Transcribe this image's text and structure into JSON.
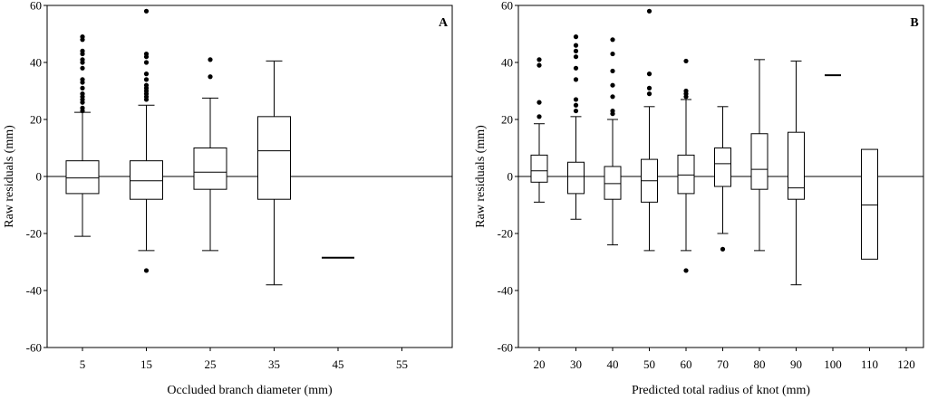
{
  "chart_data": [
    {
      "type": "boxplot",
      "panel_label": "A",
      "xlabel": "Occluded branch diameter (mm)",
      "ylabel": "Raw residuals (mm)",
      "ylim": [
        -60,
        60
      ],
      "yticks": [
        "-60",
        "-40",
        "-20",
        "0",
        "20",
        "40",
        "60"
      ],
      "reference_line": 0,
      "categories": [
        "5",
        "15",
        "25",
        "35",
        "45",
        "55"
      ],
      "boxes": [
        {
          "category": "5",
          "whisker_low": -21,
          "q1": -6,
          "median": -0.5,
          "q3": 5.5,
          "whisker_high": 22.5,
          "outliers": [
            23,
            24,
            26,
            27,
            28,
            29,
            31,
            33,
            34,
            38,
            40,
            41,
            43,
            44,
            48,
            49
          ]
        },
        {
          "category": "15",
          "whisker_low": -26,
          "q1": -8,
          "median": -1.5,
          "q3": 5.5,
          "whisker_high": 25,
          "outliers": [
            -33,
            27,
            28,
            29,
            30,
            31,
            32,
            34,
            36,
            40,
            42,
            43,
            58
          ]
        },
        {
          "category": "25",
          "whisker_low": -26,
          "q1": -4.5,
          "median": 1.5,
          "q3": 10,
          "whisker_high": 27.5,
          "outliers": [
            35,
            41
          ]
        },
        {
          "category": "35",
          "whisker_low": -38,
          "q1": -8,
          "median": 9,
          "q3": 21,
          "whisker_high": 40.5,
          "outliers": []
        },
        {
          "category": "45",
          "whisker_low": -28.5,
          "q1": -28.5,
          "median": -28.5,
          "q3": -28.5,
          "whisker_high": -28.5,
          "outliers": []
        },
        {
          "category": "55",
          "empty": true
        }
      ]
    },
    {
      "type": "boxplot",
      "panel_label": "B",
      "xlabel": "Predicted total radius of knot (mm)",
      "ylabel": "Raw residuals (mm)",
      "ylim": [
        -60,
        60
      ],
      "yticks": [
        "-60",
        "-40",
        "-20",
        "0",
        "20",
        "40",
        "60"
      ],
      "reference_line": 0,
      "categories": [
        "20",
        "30",
        "40",
        "50",
        "60",
        "70",
        "80",
        "90",
        "100",
        "110",
        "120"
      ],
      "boxes": [
        {
          "category": "20",
          "whisker_low": -9,
          "q1": -2,
          "median": 2,
          "q3": 7.5,
          "whisker_high": 18.5,
          "outliers": [
            21,
            26,
            39,
            41
          ]
        },
        {
          "category": "30",
          "whisker_low": -15,
          "q1": -6,
          "median": 0,
          "q3": 5,
          "whisker_high": 21,
          "outliers": [
            23,
            25,
            27,
            34,
            38,
            42,
            44,
            46,
            49
          ]
        },
        {
          "category": "40",
          "whisker_low": -24,
          "q1": -8,
          "median": -2.5,
          "q3": 3.5,
          "whisker_high": 20,
          "outliers": [
            22,
            23,
            28,
            32,
            37,
            43,
            48
          ]
        },
        {
          "category": "50",
          "whisker_low": -26,
          "q1": -9,
          "median": -1.5,
          "q3": 6,
          "whisker_high": 24.5,
          "outliers": [
            29,
            31,
            36,
            58
          ]
        },
        {
          "category": "60",
          "whisker_low": -26,
          "q1": -6,
          "median": 0.5,
          "q3": 7.5,
          "whisker_high": 27,
          "outliers": [
            -33,
            28,
            29,
            30,
            40.5
          ]
        },
        {
          "category": "70",
          "whisker_low": -20,
          "q1": -3.5,
          "median": 4.5,
          "q3": 10,
          "whisker_high": 24.5,
          "outliers": [
            -25.5
          ]
        },
        {
          "category": "80",
          "whisker_low": -26,
          "q1": -4.5,
          "median": 2.5,
          "q3": 15,
          "whisker_high": 41,
          "outliers": []
        },
        {
          "category": "90",
          "whisker_low": -38,
          "q1": -8,
          "median": -4,
          "q3": 15.5,
          "whisker_high": 40.5,
          "outliers": []
        },
        {
          "category": "100",
          "whisker_low": 35.5,
          "q1": 35.5,
          "median": 35.5,
          "q3": 35.5,
          "whisker_high": 35.5,
          "outliers": []
        },
        {
          "category": "110",
          "whisker_low": -29,
          "q1": -29,
          "median": -10,
          "q3": 9.5,
          "whisker_high": 9.5,
          "outliers": []
        },
        {
          "category": "120",
          "empty": true
        }
      ]
    }
  ],
  "colors": {
    "line": "#000000",
    "box_fill": "#ffffff",
    "outlier": "#000000",
    "background": "#ffffff"
  }
}
